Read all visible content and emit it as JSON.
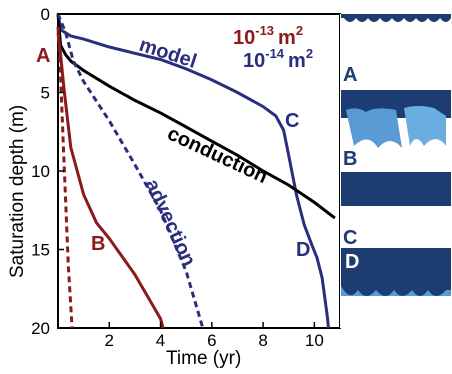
{
  "chart_data": {
    "type": "line",
    "xlabel": "Time (yr)",
    "ylabel": "Saturation depth (m)",
    "xlim": [
      0,
      11
    ],
    "ylim": [
      20,
      0
    ],
    "y_inverted": true,
    "x_ticks": [
      2,
      4,
      6,
      8,
      10
    ],
    "y_ticks": [
      0,
      5,
      10,
      15,
      20
    ],
    "grid": false,
    "legend": {
      "position": "top-right",
      "entries": [
        {
          "label": "10",
          "exponent": "-13",
          "unit": "m",
          "unit_exp": "2",
          "color": "#8b1a1a"
        },
        {
          "label": "10",
          "exponent": "-14",
          "unit": "m",
          "unit_exp": "2",
          "color": "#2b2e7e"
        }
      ]
    },
    "series": [
      {
        "name": "model",
        "style": "solid",
        "color": "#2b2e7e",
        "points": [
          [
            0,
            0
          ],
          [
            0.1,
            1.0
          ],
          [
            0.5,
            1.4
          ],
          [
            1.0,
            1.6
          ],
          [
            2.0,
            2.1
          ],
          [
            3.0,
            2.5
          ],
          [
            4.0,
            2.9
          ],
          [
            5.0,
            3.5
          ],
          [
            6.0,
            4.2
          ],
          [
            7.0,
            5.0
          ],
          [
            8.0,
            5.9
          ],
          [
            8.5,
            6.5
          ],
          [
            8.8,
            7.4
          ],
          [
            9.0,
            9.0
          ],
          [
            9.3,
            11.5
          ],
          [
            9.6,
            13.4
          ],
          [
            9.9,
            14.7
          ],
          [
            10.1,
            15.5
          ],
          [
            10.3,
            16.8
          ],
          [
            10.5,
            19.2
          ],
          [
            10.55,
            20
          ]
        ]
      },
      {
        "name": "conduction",
        "style": "solid",
        "color": "#000000",
        "points": [
          [
            0,
            0
          ],
          [
            0.1,
            2.0
          ],
          [
            0.3,
            2.6
          ],
          [
            0.5,
            3.0
          ],
          [
            1.0,
            3.6
          ],
          [
            2.0,
            4.6
          ],
          [
            3.0,
            5.5
          ],
          [
            4.0,
            6.3
          ],
          [
            5.0,
            7.2
          ],
          [
            6.0,
            8.1
          ],
          [
            7.0,
            9.0
          ],
          [
            8.0,
            10.0
          ],
          [
            9.0,
            10.9
          ],
          [
            10.0,
            12.0
          ],
          [
            10.8,
            13.0
          ]
        ]
      },
      {
        "name": "advection",
        "style": "dashed",
        "color": "#2b2e7e",
        "points": [
          [
            0,
            0
          ],
          [
            0.3,
            1.2
          ],
          [
            0.6,
            3.0
          ],
          [
            1.0,
            4.3
          ],
          [
            2.0,
            6.8
          ],
          [
            3.0,
            9.6
          ],
          [
            4.0,
            12.5
          ],
          [
            5.0,
            16.4
          ],
          [
            5.65,
            20
          ]
        ]
      },
      {
        "name": "A",
        "style": "solid",
        "color": "#8b1a1a",
        "points": [
          [
            0,
            1.2
          ],
          [
            0.1,
            2.6
          ],
          [
            0.25,
            5.0
          ],
          [
            0.5,
            8.5
          ],
          [
            1.0,
            11.5
          ],
          [
            1.5,
            13.3
          ],
          [
            2.0,
            14.3
          ],
          [
            3.0,
            16.6
          ],
          [
            4.0,
            19.4
          ],
          [
            4.1,
            20
          ]
        ]
      },
      {
        "name": "advection 10^-13",
        "style": "dashed",
        "color": "#8b1a1a",
        "points": [
          [
            0,
            0.8
          ],
          [
            0.1,
            4.0
          ],
          [
            0.2,
            8.0
          ],
          [
            0.3,
            12.0
          ],
          [
            0.4,
            16.0
          ],
          [
            0.55,
            20
          ]
        ]
      }
    ],
    "annotations": [
      {
        "text": "model",
        "color": "#2b2e7e"
      },
      {
        "text": "conduction",
        "color": "#000000"
      },
      {
        "text": "advection",
        "color": "#2b2e7e"
      },
      {
        "text": "A",
        "color": "#8b1a1a"
      },
      {
        "text": "B",
        "color": "#8b1a1a"
      },
      {
        "text": "C",
        "color": "#2b2e7e"
      },
      {
        "text": "D",
        "color": "#2b2e7e"
      }
    ],
    "y_tick_labels": [
      "0",
      "5",
      "10",
      "15",
      "20"
    ],
    "x_tick_labels": [
      "2",
      "4",
      "6",
      "8",
      "10"
    ]
  },
  "side_panels": [
    {
      "label": "A"
    },
    {
      "label": "B"
    },
    {
      "label": "C"
    },
    {
      "label": "D"
    }
  ],
  "colors": {
    "dark_red": "#8b1a1a",
    "navy": "#2b2e7e",
    "panel_dark": "#1c3c72",
    "panel_light": "#5b9bd5"
  }
}
